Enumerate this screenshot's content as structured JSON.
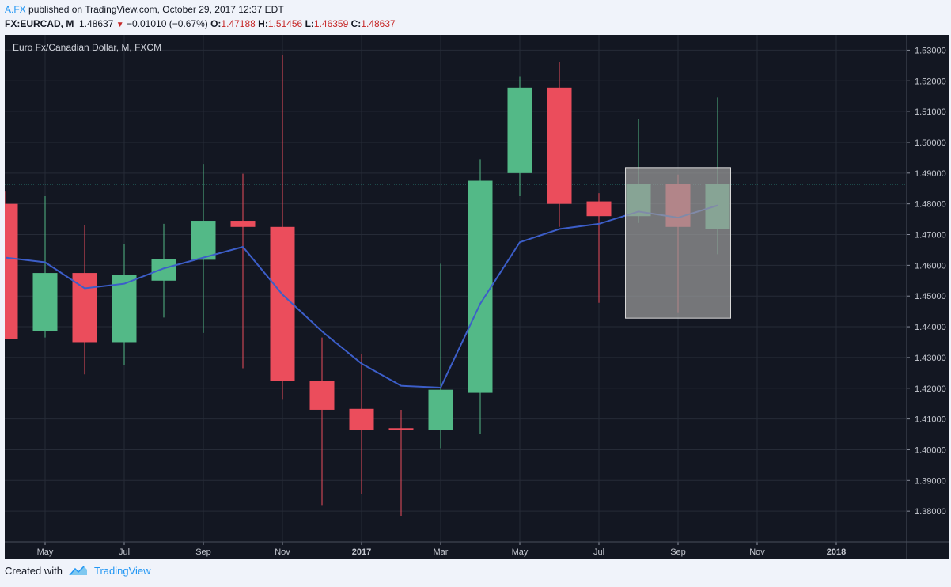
{
  "header": {
    "author": "A.FX",
    "published": "published on TradingView.com, October 29, 2017 12:37 EDT",
    "symbol": "FX:EURCAD, M",
    "last": "1.48637",
    "change": "−0.01010 (−0.67%)",
    "o_label": "O:",
    "o": "1.47188",
    "h_label": "H:",
    "h": "1.51456",
    "l_label": "L:",
    "l": "1.46359",
    "c_label": "C:",
    "c": "1.48637"
  },
  "footer": {
    "created_with": "Created with",
    "brand": "TradingView"
  },
  "colors": {
    "background": "#131722",
    "up": "#53b987",
    "down": "#eb4d5c",
    "ma": "#3c5ec9",
    "highlight": "#9b9b9b",
    "last_price_line": "#2f9e8f"
  },
  "chart_data": {
    "type": "candlestick",
    "title": "Euro Fx/Canadian Dollar, M, FXCM",
    "ylim": [
      1.37,
      1.535
    ],
    "y_ticks": [
      "1.53000",
      "1.52000",
      "1.51000",
      "1.50000",
      "1.49000",
      "1.48000",
      "1.47000",
      "1.46000",
      "1.45000",
      "1.44000",
      "1.43000",
      "1.42000",
      "1.41000",
      "1.40000",
      "1.39000",
      "1.38000"
    ],
    "x_tick_labels": [
      {
        "index": 1,
        "label": "May",
        "bold": false
      },
      {
        "index": 3,
        "label": "Jul",
        "bold": false
      },
      {
        "index": 5,
        "label": "Sep",
        "bold": false
      },
      {
        "index": 7,
        "label": "Nov",
        "bold": false
      },
      {
        "index": 9,
        "label": "2017",
        "bold": true
      },
      {
        "index": 11,
        "label": "Mar",
        "bold": false
      },
      {
        "index": 13,
        "label": "May",
        "bold": false
      },
      {
        "index": 15,
        "label": "Jul",
        "bold": false
      },
      {
        "index": 17,
        "label": "Sep",
        "bold": false
      },
      {
        "index": 19,
        "label": "Nov",
        "bold": false
      },
      {
        "index": 21,
        "label": "2018",
        "bold": true
      }
    ],
    "candles": [
      {
        "month": "Apr 2016",
        "o": 1.48,
        "h": 1.484,
        "l": 1.436,
        "c": 1.436
      },
      {
        "month": "May 2016",
        "o": 1.4385,
        "h": 1.4825,
        "l": 1.4365,
        "c": 1.4575
      },
      {
        "month": "Jun 2016",
        "o": 1.4575,
        "h": 1.473,
        "l": 1.4245,
        "c": 1.435
      },
      {
        "month": "Jul 2016",
        "o": 1.435,
        "h": 1.467,
        "l": 1.4275,
        "c": 1.4568
      },
      {
        "month": "Aug 2016",
        "o": 1.455,
        "h": 1.4735,
        "l": 1.443,
        "c": 1.462
      },
      {
        "month": "Sep 2016",
        "o": 1.4618,
        "h": 1.493,
        "l": 1.438,
        "c": 1.4745
      },
      {
        "month": "Oct 2016",
        "o": 1.4745,
        "h": 1.4898,
        "l": 1.4265,
        "c": 1.4725
      },
      {
        "month": "Nov 2016",
        "o": 1.4725,
        "h": 1.5285,
        "l": 1.4165,
        "c": 1.4225
      },
      {
        "month": "Dec 2016",
        "o": 1.4225,
        "h": 1.4365,
        "l": 1.382,
        "c": 1.413
      },
      {
        "month": "Jan 2017",
        "o": 1.4133,
        "h": 1.431,
        "l": 1.3855,
        "c": 1.4065
      },
      {
        "month": "Feb 2017",
        "o": 1.407,
        "h": 1.413,
        "l": 1.3785,
        "c": 1.4065
      },
      {
        "month": "Mar 2017",
        "o": 1.4065,
        "h": 1.4605,
        "l": 1.4005,
        "c": 1.4195
      },
      {
        "month": "Apr 2017",
        "o": 1.4185,
        "h": 1.4945,
        "l": 1.405,
        "c": 1.4875
      },
      {
        "month": "May 2017",
        "o": 1.49,
        "h": 1.5215,
        "l": 1.4825,
        "c": 1.5178
      },
      {
        "month": "Jun 2017",
        "o": 1.5178,
        "h": 1.526,
        "l": 1.4725,
        "c": 1.48
      },
      {
        "month": "Jul 2017",
        "o": 1.4808,
        "h": 1.4835,
        "l": 1.4478,
        "c": 1.476
      },
      {
        "month": "Aug 2017",
        "o": 1.476,
        "h": 1.5075,
        "l": 1.4738,
        "c": 1.4865,
        "highlight": true
      },
      {
        "month": "Sep 2017",
        "o": 1.4865,
        "h": 1.4895,
        "l": 1.4445,
        "c": 1.4725,
        "highlight": true
      },
      {
        "month": "Oct 2017",
        "o": 1.47188,
        "h": 1.51456,
        "l": 1.46359,
        "c": 1.48637,
        "highlight": true
      }
    ],
    "ma": [
      1.4625,
      1.461,
      1.4525,
      1.454,
      1.459,
      1.4625,
      1.466,
      1.4505,
      1.4385,
      1.428,
      1.4208,
      1.4202,
      1.4475,
      1.4675,
      1.4718,
      1.4735,
      1.4775,
      1.4755,
      1.4795
    ],
    "highlight_box": {
      "from_index": 16,
      "to_index": 18,
      "top": 1.4918,
      "bottom": 1.4428
    },
    "last_price": 1.48637
  }
}
